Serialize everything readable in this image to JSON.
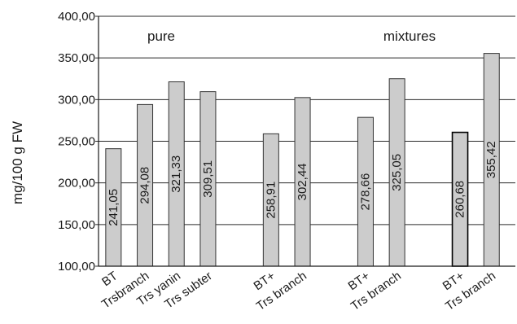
{
  "chart_data": {
    "type": "bar",
    "ylabel": "mg/100 g FW",
    "xlabel": "",
    "ylim": [
      100,
      400
    ],
    "y_ticks": [
      "100,00",
      "150,00",
      "200,00",
      "250,00",
      "300,00",
      "350,00",
      "400,00"
    ],
    "grid": "horizontal",
    "groups": [
      {
        "annotation": "pure",
        "bars": [
          {
            "label": "BT",
            "value": 241.05,
            "value_label": "241,05",
            "color": "#cccccc"
          },
          {
            "label": "Trsbranch",
            "value": 294.08,
            "value_label": "294,08",
            "color": "#cccccc"
          },
          {
            "label": "Trs yanin",
            "value": 321.33,
            "value_label": "321,33",
            "color": "#cccccc"
          },
          {
            "label": "Trs subter",
            "value": 309.51,
            "value_label": "309,51",
            "color": "#cccccc"
          }
        ]
      },
      {
        "annotation": "",
        "bars": [
          {
            "label": "BT+",
            "value": 258.91,
            "value_label": "258,91",
            "color": "#cccccc"
          },
          {
            "label": "Trs branch",
            "value": 302.44,
            "value_label": "302,44",
            "color": "#cccccc"
          }
        ]
      },
      {
        "annotation": "mixtures",
        "bars": [
          {
            "label": "BT+",
            "value": 278.66,
            "value_label": "278,66",
            "color": "#cccccc"
          },
          {
            "label": "Trs branch",
            "value": 325.05,
            "value_label": "325,05",
            "color": "#cccccc"
          }
        ]
      },
      {
        "annotation": "",
        "bars": [
          {
            "label": "BT+",
            "value": 260.68,
            "value_label": "260,68",
            "color": "#cccccc",
            "highlight": true
          },
          {
            "label": "Trs branch",
            "value": 355.42,
            "value_label": "355,42",
            "color": "#cccccc"
          }
        ]
      }
    ]
  }
}
